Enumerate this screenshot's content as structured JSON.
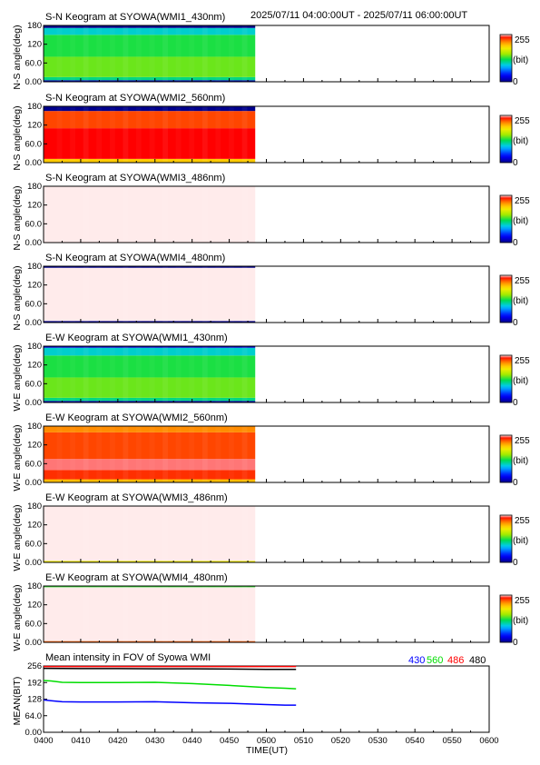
{
  "header": {
    "time_range": "2025/07/11 04:00:00UT - 2025/07/11 06:00:00UT"
  },
  "colorbar": {
    "max_label": "255",
    "unit_label": "(bit)",
    "min_label": "0"
  },
  "chart_data": [
    {
      "type": "heatmap",
      "title": "S-N Keogram at SYOWA(WMI1_430nm)",
      "ylabel": "N-S angle(deg)",
      "ylim": [
        0,
        180
      ],
      "yticks": [
        "0.00",
        "60.0",
        "120",
        "180"
      ],
      "data_extent_frac": 0.475,
      "bands": [
        {
          "from": 0,
          "to": 5,
          "value": 10
        },
        {
          "from": 5,
          "to": 15,
          "value": 110
        },
        {
          "from": 15,
          "to": 80,
          "value": 140
        },
        {
          "from": 80,
          "to": 150,
          "value": 125
        },
        {
          "from": 150,
          "to": 172,
          "value": 95
        },
        {
          "from": 172,
          "to": 180,
          "value": 0
        }
      ]
    },
    {
      "type": "heatmap",
      "title": "S-N Keogram at SYOWA(WMI2_560nm)",
      "ylabel": "N-S angle(deg)",
      "ylim": [
        0,
        180
      ],
      "yticks": [
        "0.00",
        "60.0",
        "120",
        "180"
      ],
      "data_extent_frac": 0.475,
      "bands": [
        {
          "from": 0,
          "to": 12,
          "value": 195
        },
        {
          "from": 12,
          "to": 110,
          "value": 245
        },
        {
          "from": 110,
          "to": 165,
          "value": 230
        },
        {
          "from": 165,
          "to": 180,
          "value": 0
        }
      ]
    },
    {
      "type": "heatmap",
      "title": "S-N Keogram at SYOWA(WMI3_486nm)",
      "ylabel": "N-S angle(deg)",
      "ylim": [
        0,
        180
      ],
      "yticks": [
        "0.00",
        "60.0",
        "120",
        "180"
      ],
      "data_extent_frac": 0.475,
      "bands": [
        {
          "from": 0,
          "to": 180,
          "value": 255
        }
      ]
    },
    {
      "type": "heatmap",
      "title": "S-N Keogram at SYOWA(WMI4_480nm)",
      "ylabel": "N-S angle(deg)",
      "ylim": [
        0,
        180
      ],
      "yticks": [
        "0.00",
        "60.0",
        "120",
        "180"
      ],
      "data_extent_frac": 0.475,
      "bands": [
        {
          "from": 0,
          "to": 5,
          "value": 0
        },
        {
          "from": 5,
          "to": 175,
          "value": 255
        },
        {
          "from": 175,
          "to": 180,
          "value": 0
        }
      ]
    },
    {
      "type": "heatmap",
      "title": "E-W Keogram at SYOWA(WMI1_430nm)",
      "ylabel": "W-E angle(deg)",
      "ylim": [
        0,
        180
      ],
      "yticks": [
        "0.00",
        "60.0",
        "120",
        "180"
      ],
      "data_extent_frac": 0.475,
      "bands": [
        {
          "from": 0,
          "to": 5,
          "value": 10
        },
        {
          "from": 5,
          "to": 15,
          "value": 110
        },
        {
          "from": 15,
          "to": 80,
          "value": 140
        },
        {
          "from": 80,
          "to": 150,
          "value": 125
        },
        {
          "from": 150,
          "to": 175,
          "value": 95
        },
        {
          "from": 175,
          "to": 180,
          "value": 20
        }
      ]
    },
    {
      "type": "heatmap",
      "title": "E-W Keogram at SYOWA(WMI2_560nm)",
      "ylabel": "W-E angle(deg)",
      "ylim": [
        0,
        180
      ],
      "yticks": [
        "0.00",
        "60.0",
        "120",
        "180"
      ],
      "data_extent_frac": 0.475,
      "bands": [
        {
          "from": 0,
          "to": 10,
          "value": 200
        },
        {
          "from": 10,
          "to": 40,
          "value": 235
        },
        {
          "from": 40,
          "to": 75,
          "value": 250
        },
        {
          "from": 75,
          "to": 160,
          "value": 230
        },
        {
          "from": 160,
          "to": 180,
          "value": 215
        }
      ]
    },
    {
      "type": "heatmap",
      "title": "E-W Keogram at SYOWA(WMI3_486nm)",
      "ylabel": "W-E angle(deg)",
      "ylim": [
        0,
        180
      ],
      "yticks": [
        "0.00",
        "60.0",
        "120",
        "180"
      ],
      "data_extent_frac": 0.475,
      "bands": [
        {
          "from": 0,
          "to": 5,
          "value": 180
        },
        {
          "from": 5,
          "to": 180,
          "value": 255
        }
      ]
    },
    {
      "type": "heatmap",
      "title": "E-W Keogram at SYOWA(WMI4_480nm)",
      "ylabel": "W-E angle(deg)",
      "ylim": [
        0,
        180
      ],
      "yticks": [
        "0.00",
        "60.0",
        "120",
        "180"
      ],
      "data_extent_frac": 0.475,
      "bands": [
        {
          "from": 0,
          "to": 4,
          "value": 225
        },
        {
          "from": 4,
          "to": 176,
          "value": 255
        },
        {
          "from": 176,
          "to": 180,
          "value": 130
        }
      ]
    },
    {
      "type": "line",
      "title": "Mean intensity in FOV of Syowa WMI",
      "ylabel": "MEAN(BIT)",
      "xlabel": "TIME(UT)",
      "x_ticks": [
        "0400",
        "0410",
        "0420",
        "0430",
        "0440",
        "0450",
        "0500",
        "0510",
        "0520",
        "0530",
        "0540",
        "0550",
        "0600"
      ],
      "ylim": [
        0,
        256
      ],
      "yticks": [
        "0.00",
        "64.0",
        "128",
        "192",
        "256"
      ],
      "series": [
        {
          "name": "430",
          "color": "#0000ff",
          "x": [
            "0400",
            "0402",
            "0405",
            "0410",
            "0420",
            "0430",
            "0440",
            "0450",
            "0500",
            "0505",
            "0508"
          ],
          "y": [
            125,
            122,
            118,
            117,
            117,
            118,
            114,
            112,
            107,
            105,
            105
          ]
        },
        {
          "name": "560",
          "color": "#00dd00",
          "x": [
            "0400",
            "0402",
            "0405",
            "0410",
            "0420",
            "0430",
            "0440",
            "0450",
            "0500",
            "0505",
            "0508"
          ],
          "y": [
            200,
            198,
            193,
            192,
            192,
            193,
            188,
            181,
            173,
            170,
            168
          ]
        },
        {
          "name": "486",
          "color": "#ff0000",
          "x": [
            "0400",
            "0410",
            "0420",
            "0430",
            "0440",
            "0450",
            "0500",
            "0508"
          ],
          "y": [
            254,
            254,
            254,
            254,
            254,
            254,
            254,
            254
          ]
        },
        {
          "name": "480",
          "color": "#000000",
          "x": [
            "0400",
            "0410",
            "0420",
            "0430",
            "0440",
            "0450",
            "0500",
            "0508"
          ],
          "y": [
            247,
            246,
            246,
            245,
            245,
            244,
            243,
            243
          ]
        }
      ]
    }
  ]
}
